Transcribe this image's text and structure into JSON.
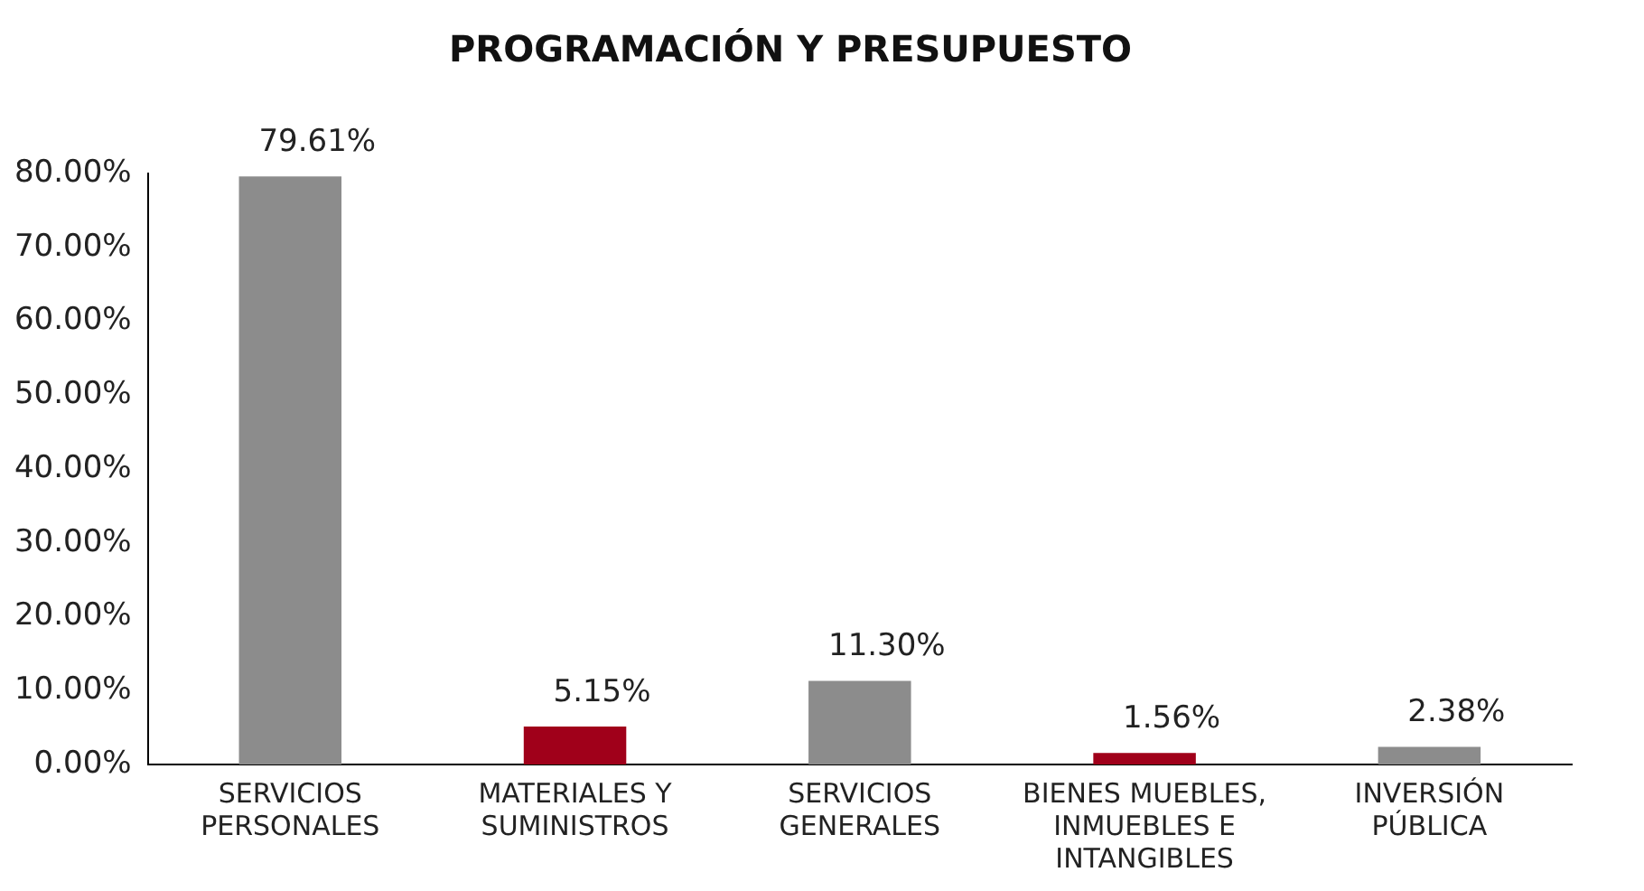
{
  "chart_data": {
    "type": "bar",
    "title": "PROGRAMACIÓN Y PRESUPUESTO",
    "categories": [
      "SERVICIOS PERSONALES",
      "MATERIALES Y SUMINISTROS",
      "SERVICIOS GENERALES",
      "BIENES MUEBLES, INMUEBLES E INTANGIBLES",
      "INVERSIÓN PÚBLICA"
    ],
    "values": [
      79.61,
      5.15,
      11.3,
      1.56,
      2.38
    ],
    "value_labels": [
      "79.61%",
      "5.15%",
      "11.30%",
      "1.56%",
      "2.38%"
    ],
    "colors": [
      "#8c8c8c",
      "#a0001a",
      "#8c8c8c",
      "#a0001a",
      "#8c8c8c"
    ],
    "ylim": [
      0,
      80
    ],
    "yticks": [
      {
        "value": 0,
        "label": "0.00%"
      },
      {
        "value": 10,
        "label": "10.00%"
      },
      {
        "value": 20,
        "label": "20.00%"
      },
      {
        "value": 30,
        "label": "30.00%"
      },
      {
        "value": 40,
        "label": "40.00%"
      },
      {
        "value": 50,
        "label": "50.00%"
      },
      {
        "value": 60,
        "label": "60.00%"
      },
      {
        "value": 70,
        "label": "70.00%"
      },
      {
        "value": 80,
        "label": "80.00%"
      }
    ],
    "grid": false,
    "legend": false
  }
}
